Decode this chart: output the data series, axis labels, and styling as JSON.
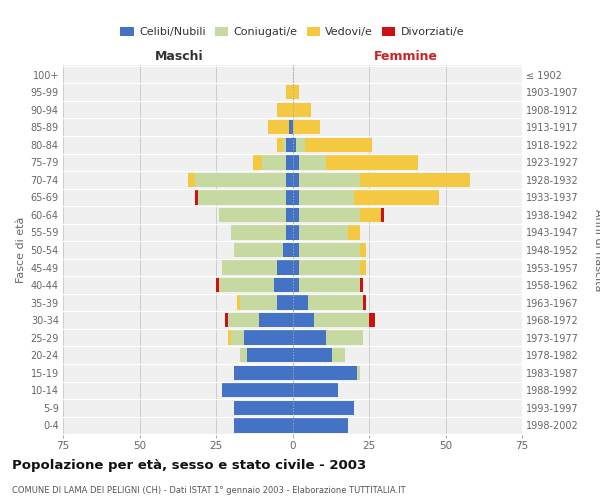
{
  "age_groups": [
    "0-4",
    "5-9",
    "10-14",
    "15-19",
    "20-24",
    "25-29",
    "30-34",
    "35-39",
    "40-44",
    "45-49",
    "50-54",
    "55-59",
    "60-64",
    "65-69",
    "70-74",
    "75-79",
    "80-84",
    "85-89",
    "90-94",
    "95-99",
    "100+"
  ],
  "birth_years": [
    "1998-2002",
    "1993-1997",
    "1988-1992",
    "1983-1987",
    "1978-1982",
    "1973-1977",
    "1968-1972",
    "1963-1967",
    "1958-1962",
    "1953-1957",
    "1948-1952",
    "1943-1947",
    "1938-1942",
    "1933-1937",
    "1928-1932",
    "1923-1927",
    "1918-1922",
    "1913-1917",
    "1908-1912",
    "1903-1907",
    "≤ 1902"
  ],
  "colors": {
    "celibe": "#4472C4",
    "coniugato": "#c5d9a0",
    "vedovo": "#f5c842",
    "divorziato": "#cc1111"
  },
  "males": {
    "celibe": [
      19,
      19,
      23,
      19,
      15,
      16,
      11,
      5,
      6,
      5,
      3,
      2,
      2,
      2,
      2,
      2,
      2,
      1,
      0,
      0,
      0
    ],
    "coniugato": [
      0,
      0,
      0,
      0,
      2,
      4,
      10,
      12,
      18,
      18,
      16,
      18,
      22,
      29,
      30,
      8,
      1,
      0,
      0,
      0,
      0
    ],
    "vedovo": [
      0,
      0,
      0,
      0,
      0,
      1,
      0,
      1,
      0,
      0,
      0,
      0,
      0,
      0,
      2,
      3,
      2,
      7,
      5,
      2,
      0
    ],
    "divorziato": [
      0,
      0,
      0,
      0,
      0,
      0,
      1,
      0,
      1,
      0,
      0,
      0,
      0,
      1,
      0,
      0,
      0,
      0,
      0,
      0,
      0
    ]
  },
  "females": {
    "nubile": [
      18,
      20,
      15,
      21,
      13,
      11,
      7,
      5,
      2,
      2,
      2,
      2,
      2,
      2,
      2,
      2,
      1,
      0,
      0,
      0,
      0
    ],
    "coniugata": [
      0,
      0,
      0,
      1,
      4,
      12,
      18,
      18,
      20,
      20,
      20,
      16,
      20,
      18,
      20,
      9,
      3,
      0,
      0,
      0,
      0
    ],
    "vedova": [
      0,
      0,
      0,
      0,
      0,
      0,
      0,
      0,
      0,
      2,
      2,
      4,
      7,
      28,
      36,
      30,
      22,
      9,
      6,
      2,
      0
    ],
    "divorziata": [
      0,
      0,
      0,
      0,
      0,
      0,
      2,
      1,
      1,
      0,
      0,
      0,
      1,
      0,
      0,
      0,
      0,
      0,
      0,
      0,
      0
    ]
  },
  "xlim": 75,
  "title": "Popolazione per età, sesso e stato civile - 2003",
  "subtitle": "COMUNE DI LAMA DEI PELIGNI (CH) - Dati ISTAT 1° gennaio 2003 - Elaborazione TUTTITALIA.IT",
  "ylabel_left": "Fasce di età",
  "ylabel_right": "Anni di nascita",
  "xlabel_left": "Maschi",
  "xlabel_right": "Femmine",
  "bg_color": "#f0f0f0",
  "grid_color": "#cccccc",
  "bar_sep_color": "white"
}
